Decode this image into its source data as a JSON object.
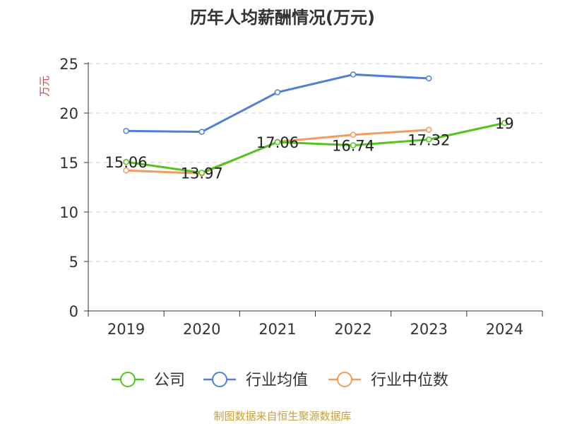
{
  "chart_data": {
    "type": "line",
    "title": "历年人均薪酬情况(万元)",
    "ylabel": "万元",
    "xlabel": "",
    "ylim": [
      0,
      25
    ],
    "yticks": [
      0,
      5,
      10,
      15,
      20,
      25
    ],
    "categories": [
      "2019",
      "2020",
      "2021",
      "2022",
      "2023",
      "2024"
    ],
    "grid": true,
    "legend_position": "bottom-center",
    "series": [
      {
        "name": "公司",
        "color": "#52c41a",
        "values": [
          15.06,
          13.97,
          17.06,
          16.74,
          17.32,
          19
        ],
        "show_labels": true
      },
      {
        "name": "行业均值",
        "color": "#4f7fdb",
        "values": [
          18.2,
          18.1,
          22.1,
          23.9,
          23.5,
          null
        ],
        "show_labels": false
      },
      {
        "name": "行业中位数",
        "color": "#f39a5e",
        "values": [
          14.2,
          13.9,
          17.1,
          17.8,
          18.3,
          null
        ],
        "show_labels": false
      }
    ],
    "data_labels": [
      "15.06",
      "13.97",
      "17.06",
      "16.74",
      "17.32",
      "19"
    ],
    "source": "制图数据来自恒生聚源数据库"
  }
}
